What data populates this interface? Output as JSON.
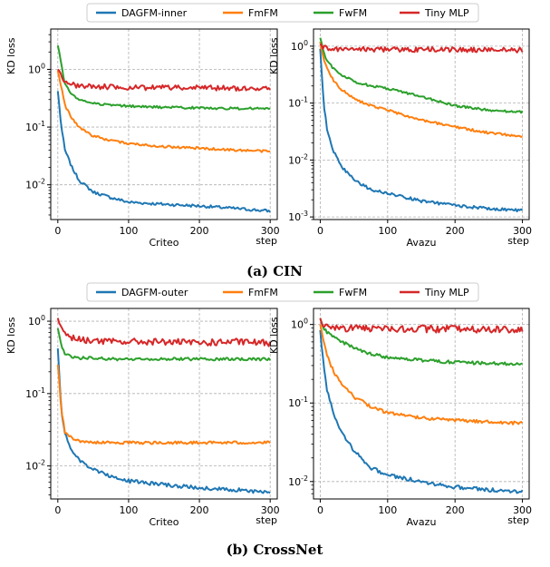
{
  "chart_data": [
    {
      "type": "line",
      "group": "(a) CIN",
      "xlabel": "Criteo",
      "xunit": "step",
      "ylabel": "KD loss",
      "yscale": "log",
      "xlim": [
        -10,
        310
      ],
      "ylim": [
        0.0025,
        5
      ],
      "xticks": [
        0,
        100,
        200,
        300
      ],
      "yticks": [
        0.01,
        0.1,
        1
      ],
      "ytick_labels": [
        "10^-2",
        "10^-1",
        "10^0"
      ],
      "grid": true,
      "series": [
        {
          "name": "DAGFM-inner",
          "color": "#1f77b4",
          "x": [
            0,
            5,
            10,
            20,
            30,
            50,
            75,
            100,
            150,
            200,
            250,
            300
          ],
          "y": [
            0.42,
            0.1,
            0.04,
            0.02,
            0.012,
            0.0075,
            0.006,
            0.005,
            0.0046,
            0.0043,
            0.0039,
            0.0035
          ]
        },
        {
          "name": "FmFM",
          "color": "#ff7f0e",
          "x": [
            0,
            5,
            10,
            20,
            30,
            50,
            75,
            100,
            150,
            200,
            250,
            300
          ],
          "y": [
            0.95,
            0.5,
            0.24,
            0.14,
            0.1,
            0.07,
            0.058,
            0.052,
            0.046,
            0.043,
            0.04,
            0.038
          ]
        },
        {
          "name": "FwFM",
          "color": "#2ca02c",
          "x": [
            0,
            5,
            10,
            20,
            30,
            50,
            75,
            100,
            150,
            200,
            250,
            300
          ],
          "y": [
            2.6,
            1.2,
            0.55,
            0.36,
            0.3,
            0.26,
            0.24,
            0.23,
            0.22,
            0.215,
            0.21,
            0.21
          ]
        },
        {
          "name": "Tiny MLP",
          "color": "#d62728",
          "x": [
            0,
            5,
            10,
            20,
            30,
            50,
            75,
            100,
            150,
            200,
            250,
            300
          ],
          "y": [
            1.0,
            0.8,
            0.62,
            0.55,
            0.52,
            0.5,
            0.5,
            0.48,
            0.48,
            0.48,
            0.47,
            0.47
          ]
        }
      ]
    },
    {
      "type": "line",
      "group": "(a) CIN",
      "xlabel": "Avazu",
      "xunit": "step",
      "ylabel": "KD loss",
      "yscale": "log",
      "xlim": [
        -10,
        310
      ],
      "ylim": [
        0.0009,
        2
      ],
      "xticks": [
        0,
        100,
        200,
        300
      ],
      "yticks": [
        0.001,
        0.01,
        0.1,
        1
      ],
      "ytick_labels": [
        "10^-3",
        "10^-2",
        "10^-1",
        "10^0"
      ],
      "grid": true,
      "series": [
        {
          "name": "DAGFM-inner",
          "color": "#1f77b4",
          "x": [
            0,
            5,
            10,
            20,
            30,
            50,
            75,
            100,
            150,
            200,
            250,
            300
          ],
          "y": [
            0.9,
            0.1,
            0.035,
            0.014,
            0.008,
            0.0045,
            0.003,
            0.0026,
            0.0019,
            0.0016,
            0.0014,
            0.0013
          ]
        },
        {
          "name": "FmFM",
          "color": "#ff7f0e",
          "x": [
            0,
            5,
            10,
            20,
            30,
            50,
            75,
            100,
            150,
            200,
            250,
            300
          ],
          "y": [
            1.2,
            0.6,
            0.4,
            0.25,
            0.18,
            0.12,
            0.09,
            0.075,
            0.05,
            0.038,
            0.03,
            0.026
          ]
        },
        {
          "name": "FwFM",
          "color": "#2ca02c",
          "x": [
            0,
            5,
            10,
            20,
            30,
            50,
            75,
            100,
            150,
            200,
            250,
            300
          ],
          "y": [
            1.4,
            0.8,
            0.55,
            0.4,
            0.32,
            0.24,
            0.2,
            0.18,
            0.13,
            0.09,
            0.075,
            0.07
          ]
        },
        {
          "name": "Tiny MLP",
          "color": "#d62728",
          "x": [
            0,
            5,
            10,
            20,
            30,
            50,
            75,
            100,
            150,
            200,
            250,
            300
          ],
          "y": [
            1.1,
            0.95,
            0.92,
            0.9,
            0.9,
            0.88,
            0.88,
            0.87,
            0.87,
            0.87,
            0.86,
            0.86
          ]
        }
      ]
    },
    {
      "type": "line",
      "group": "(b) CrossNet",
      "xlabel": "Criteo",
      "xunit": "step",
      "ylabel": "KD loss",
      "yscale": "log",
      "xlim": [
        -10,
        310
      ],
      "ylim": [
        0.0035,
        1.5
      ],
      "xticks": [
        0,
        100,
        200,
        300
      ],
      "yticks": [
        0.01,
        0.1,
        1
      ],
      "ytick_labels": [
        "10^-2",
        "10^-1",
        "10^0"
      ],
      "grid": true,
      "series": [
        {
          "name": "DAGFM-outer",
          "color": "#1f77b4",
          "x": [
            0,
            5,
            10,
            20,
            30,
            50,
            75,
            100,
            150,
            200,
            250,
            300
          ],
          "y": [
            0.42,
            0.06,
            0.028,
            0.016,
            0.012,
            0.009,
            0.0072,
            0.0062,
            0.0055,
            0.005,
            0.0047,
            0.0043
          ]
        },
        {
          "name": "FmFM",
          "color": "#ff7f0e",
          "x": [
            0,
            5,
            10,
            20,
            30,
            50,
            75,
            100,
            150,
            200,
            250,
            300
          ],
          "y": [
            0.25,
            0.06,
            0.03,
            0.024,
            0.022,
            0.021,
            0.021,
            0.021,
            0.021,
            0.021,
            0.021,
            0.021
          ]
        },
        {
          "name": "FwFM",
          "color": "#2ca02c",
          "x": [
            0,
            5,
            10,
            20,
            30,
            50,
            75,
            100,
            150,
            200,
            250,
            300
          ],
          "y": [
            0.8,
            0.45,
            0.35,
            0.32,
            0.31,
            0.31,
            0.3,
            0.3,
            0.3,
            0.3,
            0.3,
            0.3
          ]
        },
        {
          "name": "Tiny MLP",
          "color": "#d62728",
          "x": [
            0,
            5,
            10,
            20,
            30,
            50,
            75,
            100,
            150,
            200,
            250,
            300
          ],
          "y": [
            1.1,
            0.8,
            0.65,
            0.58,
            0.56,
            0.54,
            0.52,
            0.52,
            0.52,
            0.5,
            0.52,
            0.5
          ]
        }
      ]
    },
    {
      "type": "line",
      "group": "(b) CrossNet",
      "xlabel": "Avazu",
      "xunit": "step",
      "ylabel": "KD loss",
      "yscale": "log",
      "xlim": [
        -10,
        310
      ],
      "ylim": [
        0.006,
        1.6
      ],
      "xticks": [
        0,
        100,
        200,
        300
      ],
      "yticks": [
        0.01,
        0.1,
        1
      ],
      "ytick_labels": [
        "10^-2",
        "10^-1",
        "10^0"
      ],
      "grid": true,
      "series": [
        {
          "name": "DAGFM-outer",
          "color": "#1f77b4",
          "x": [
            0,
            5,
            10,
            20,
            30,
            50,
            75,
            100,
            150,
            200,
            250,
            300
          ],
          "y": [
            0.85,
            0.3,
            0.15,
            0.07,
            0.045,
            0.025,
            0.015,
            0.012,
            0.01,
            0.0085,
            0.0078,
            0.0075
          ]
        },
        {
          "name": "FmFM",
          "color": "#ff7f0e",
          "x": [
            0,
            5,
            10,
            20,
            30,
            50,
            75,
            100,
            150,
            200,
            250,
            300
          ],
          "y": [
            1.0,
            0.6,
            0.4,
            0.25,
            0.18,
            0.12,
            0.09,
            0.075,
            0.065,
            0.06,
            0.058,
            0.055
          ]
        },
        {
          "name": "FwFM",
          "color": "#2ca02c",
          "x": [
            0,
            5,
            10,
            20,
            30,
            50,
            75,
            100,
            150,
            200,
            250,
            300
          ],
          "y": [
            1.2,
            0.9,
            0.8,
            0.7,
            0.62,
            0.5,
            0.42,
            0.38,
            0.35,
            0.33,
            0.32,
            0.31
          ]
        },
        {
          "name": "Tiny MLP",
          "color": "#d62728",
          "x": [
            0,
            5,
            10,
            20,
            30,
            50,
            75,
            100,
            150,
            200,
            250,
            300
          ],
          "y": [
            1.2,
            1.0,
            0.95,
            0.92,
            0.9,
            0.9,
            0.88,
            0.88,
            0.88,
            0.87,
            0.87,
            0.86
          ]
        }
      ]
    }
  ],
  "figure": {
    "captions": [
      "(a) CIN",
      "(b) CrossNet"
    ],
    "legends": [
      [
        "DAGFM-inner",
        "FmFM",
        "FwFM",
        "Tiny MLP"
      ],
      [
        "DAGFM-outer",
        "FmFM",
        "FwFM",
        "Tiny MLP"
      ]
    ],
    "legend_colors": [
      "#1f77b4",
      "#ff7f0e",
      "#2ca02c",
      "#d62728"
    ]
  }
}
